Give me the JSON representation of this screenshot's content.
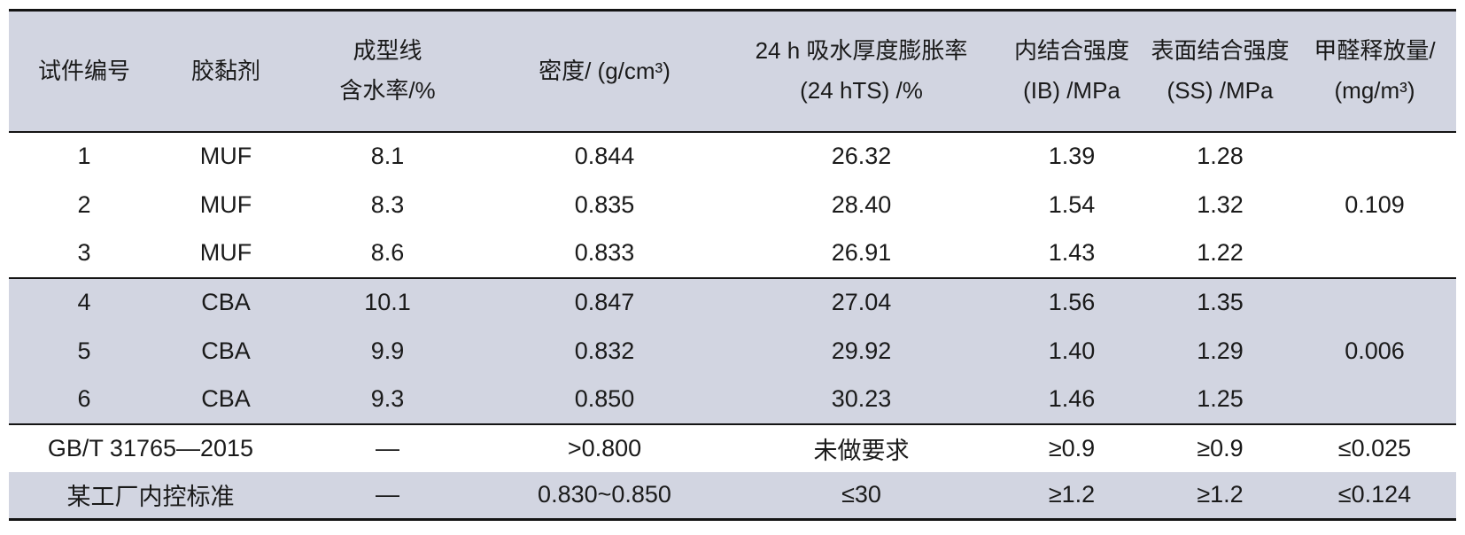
{
  "colors": {
    "shade": "#d2d5e1",
    "background": "#ffffff",
    "rule": "#141414",
    "text": "#1a1a1a"
  },
  "header": {
    "cells": [
      {
        "line1": "试件编号",
        "line2": ""
      },
      {
        "line1": "胶黏剂",
        "line2": ""
      },
      {
        "line1": "成型线",
        "line2": "含水率/%"
      },
      {
        "line1": "密度/ (g/cm³)",
        "line2": ""
      },
      {
        "line1": "24 h 吸水厚度膨胀率",
        "line2": "(24 hTS) /%"
      },
      {
        "line1": "内结合强度",
        "line2": "(IB) /MPa"
      },
      {
        "line1": "表面结合强度",
        "line2": "(SS) /MPa"
      },
      {
        "line1": "甲醛释放量/",
        "line2": "(mg/m³)"
      }
    ]
  },
  "rows": [
    {
      "no": "1",
      "adhesive": "MUF",
      "moisture": "8.1",
      "density": "0.844",
      "ts": "26.32",
      "ib": "1.39",
      "ss": "1.28",
      "formaldehyde": "0.109"
    },
    {
      "no": "2",
      "adhesive": "MUF",
      "moisture": "8.3",
      "density": "0.835",
      "ts": "28.40",
      "ib": "1.54",
      "ss": "1.32"
    },
    {
      "no": "3",
      "adhesive": "MUF",
      "moisture": "8.6",
      "density": "0.833",
      "ts": "26.91",
      "ib": "1.43",
      "ss": "1.22"
    },
    {
      "no": "4",
      "adhesive": "CBA",
      "moisture": "10.1",
      "density": "0.847",
      "ts": "27.04",
      "ib": "1.56",
      "ss": "1.35",
      "formaldehyde": "0.006"
    },
    {
      "no": "5",
      "adhesive": "CBA",
      "moisture": "9.9",
      "density": "0.832",
      "ts": "29.92",
      "ib": "1.40",
      "ss": "1.29"
    },
    {
      "no": "6",
      "adhesive": "CBA",
      "moisture": "9.3",
      "density": "0.850",
      "ts": "30.23",
      "ib": "1.46",
      "ss": "1.25"
    }
  ],
  "standards": [
    {
      "label": "GB/T 31765—2015",
      "moisture": "—",
      "density": ">0.800",
      "ts": "未做要求",
      "ib": "≥0.9",
      "ss": "≥0.9",
      "formaldehyde": "≤0.025"
    },
    {
      "label": "某工厂内控标准",
      "moisture": "—",
      "density": "0.830~0.850",
      "ts": "≤30",
      "ib": "≥1.2",
      "ss": "≥1.2",
      "formaldehyde": "≤0.124"
    }
  ]
}
